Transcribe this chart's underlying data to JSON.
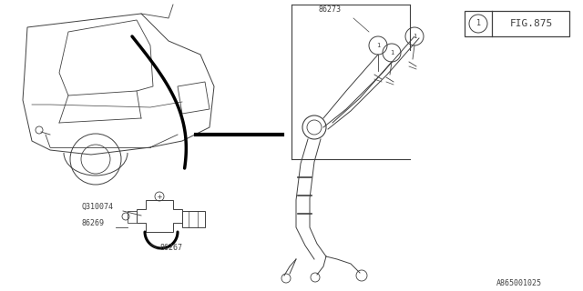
{
  "bg_color": "#ffffff",
  "line_color": "#404040",
  "thick_color": "#000000",
  "fig_label": "FIG.875",
  "bottom_label": "A865001025",
  "label_86273": "86273",
  "label_86269": "86269",
  "label_86267": "86267",
  "label_Q310074": "Q310074"
}
